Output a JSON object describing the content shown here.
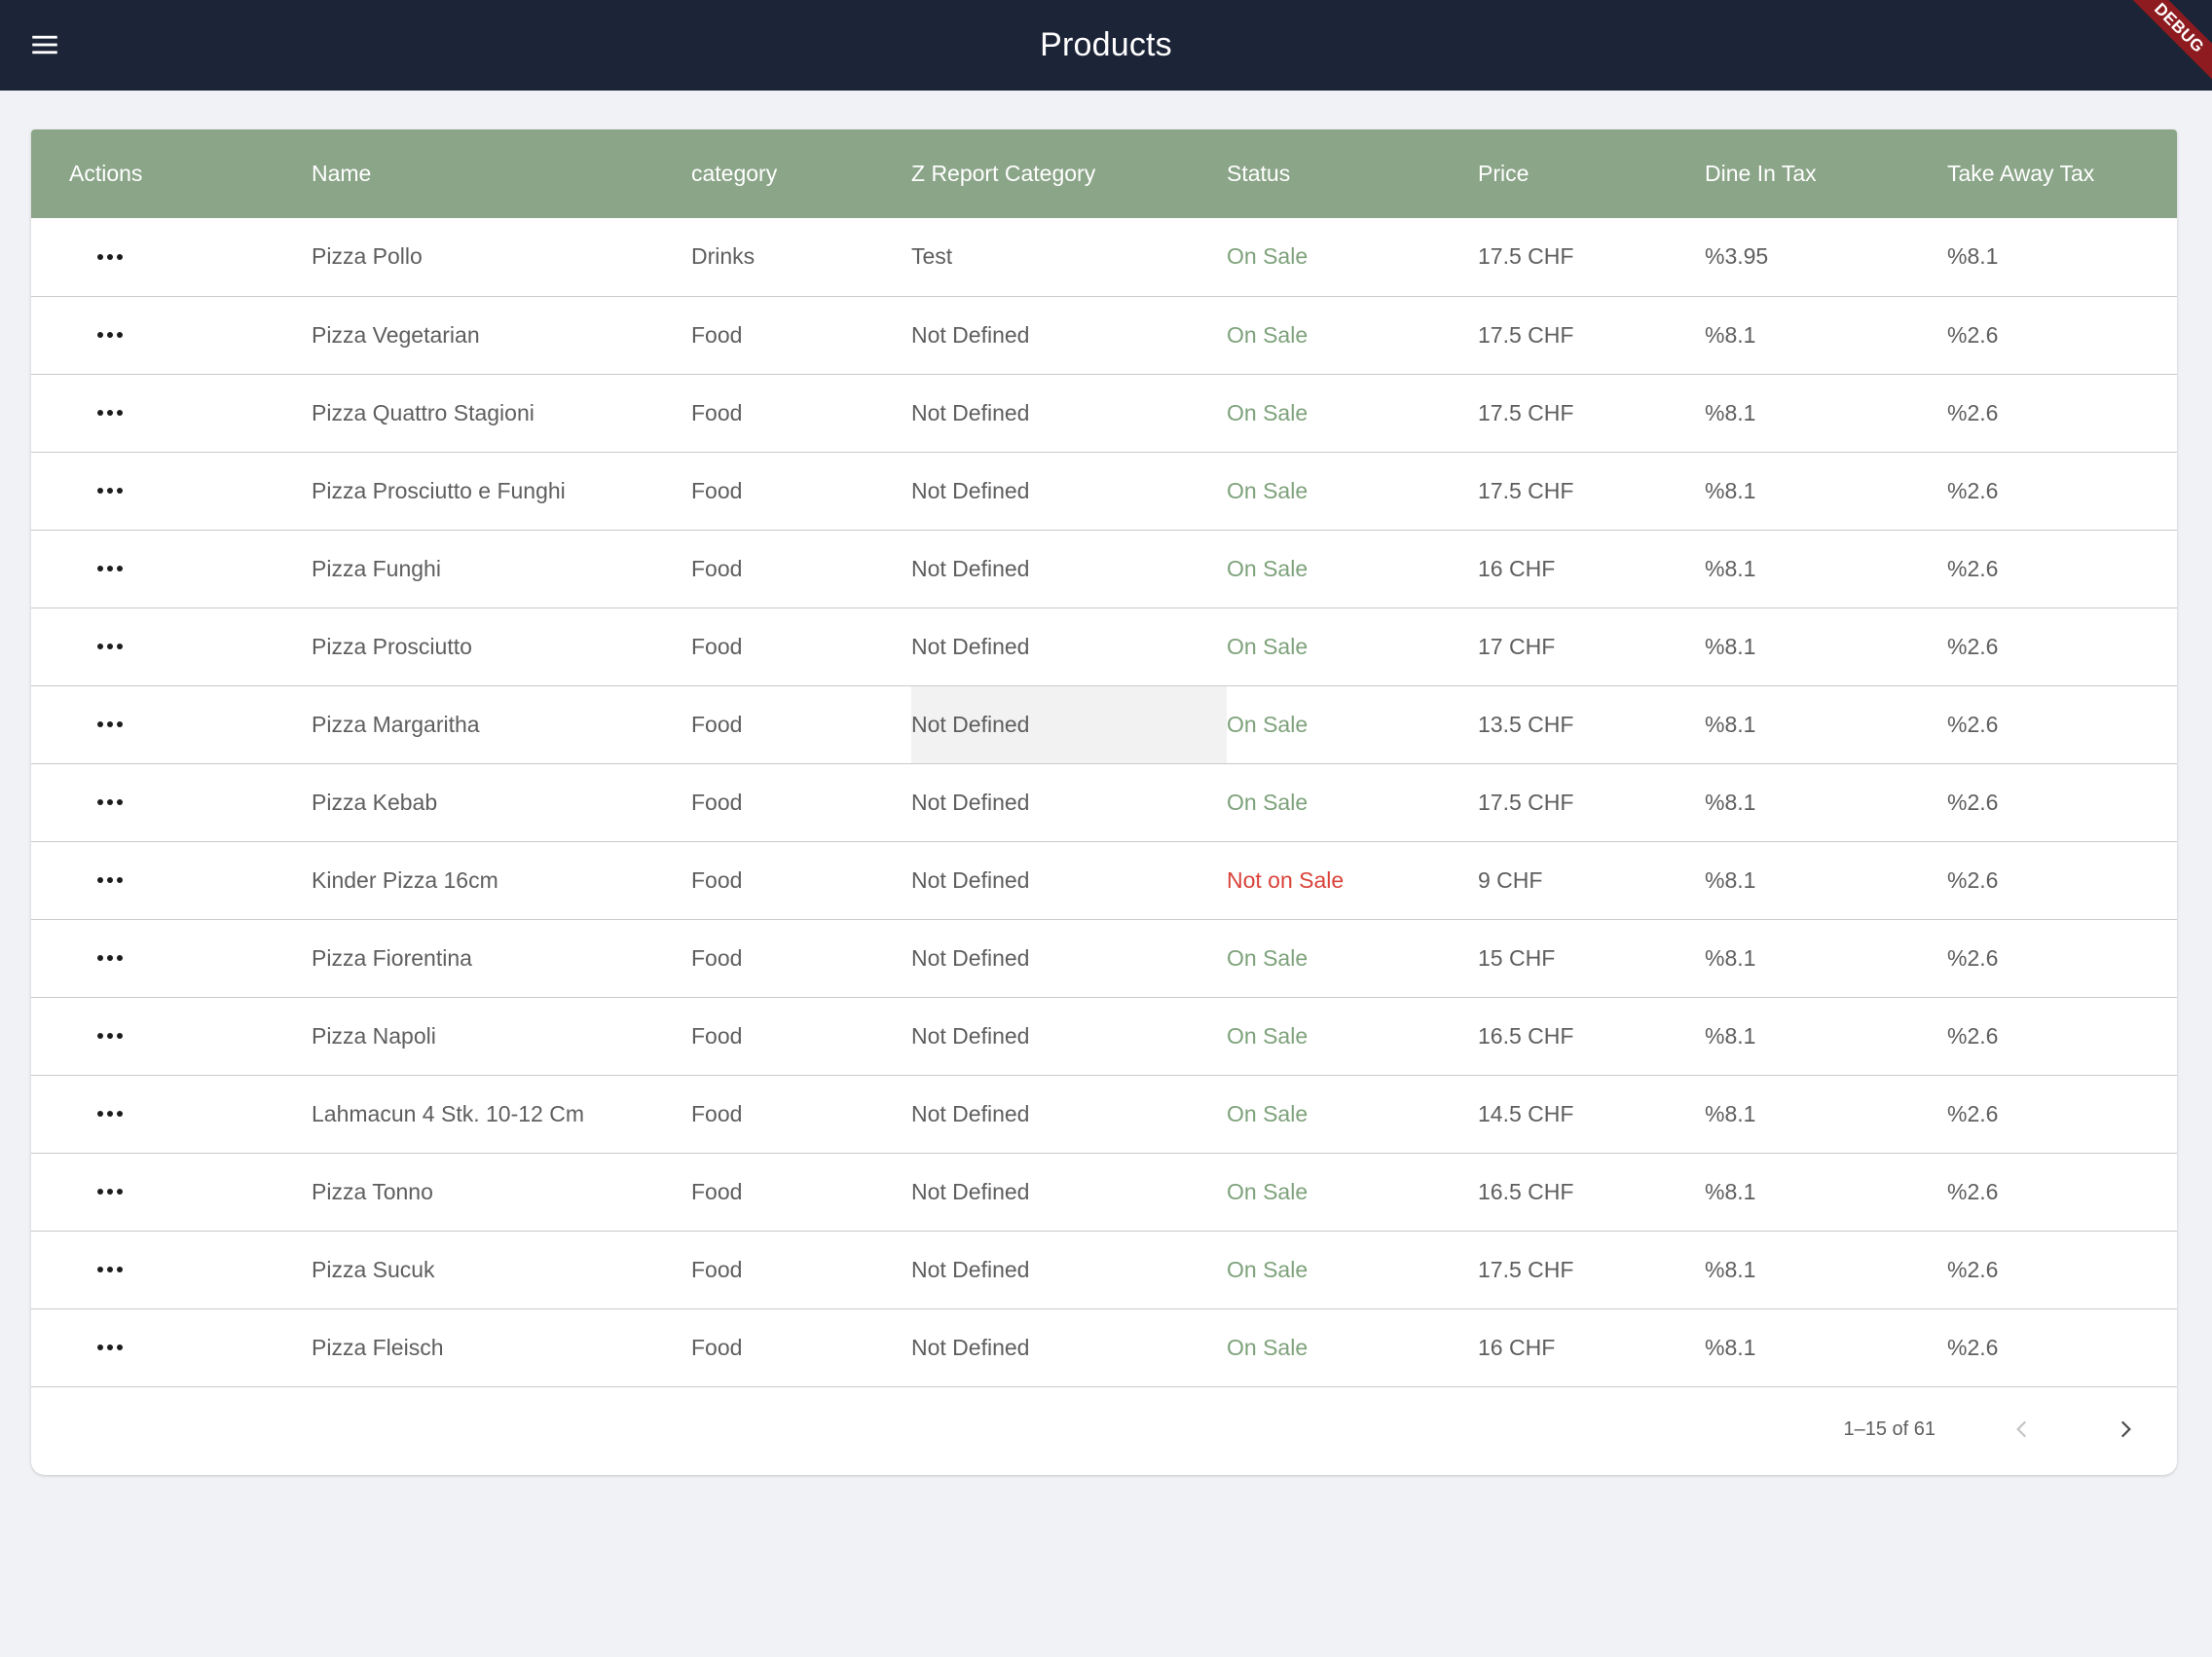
{
  "appbar": {
    "title": "Products",
    "menu_icon": "hamburger-menu-icon",
    "debug_label": "DEBUG",
    "background": "#1c2438"
  },
  "table": {
    "header_color": "#8ba588",
    "columns": [
      "Actions",
      "Name",
      "category",
      "Z Report Category",
      "Status",
      "Price",
      "Dine In Tax",
      "Take Away Tax"
    ],
    "rows": [
      {
        "name": "Pizza Pollo",
        "category": "Drinks",
        "z_report": "Test",
        "status": "On Sale",
        "price": "17.5 CHF",
        "dine_in_tax": "%3.95",
        "take_away_tax": "%8.1"
      },
      {
        "name": "Pizza Vegetarian",
        "category": "Food",
        "z_report": "Not Defined",
        "status": "On Sale",
        "price": "17.5 CHF",
        "dine_in_tax": "%8.1",
        "take_away_tax": "%2.6"
      },
      {
        "name": "Pizza Quattro Stagioni",
        "category": "Food",
        "z_report": "Not Defined",
        "status": "On Sale",
        "price": "17.5 CHF",
        "dine_in_tax": "%8.1",
        "take_away_tax": "%2.6"
      },
      {
        "name": "Pizza Prosciutto e Funghi",
        "category": "Food",
        "z_report": "Not Defined",
        "status": "On Sale",
        "price": "17.5 CHF",
        "dine_in_tax": "%8.1",
        "take_away_tax": "%2.6"
      },
      {
        "name": "Pizza Funghi",
        "category": "Food",
        "z_report": "Not Defined",
        "status": "On Sale",
        "price": "16 CHF",
        "dine_in_tax": "%8.1",
        "take_away_tax": "%2.6"
      },
      {
        "name": "Pizza Prosciutto",
        "category": "Food",
        "z_report": "Not Defined",
        "status": "On Sale",
        "price": "17 CHF",
        "dine_in_tax": "%8.1",
        "take_away_tax": "%2.6"
      },
      {
        "name": "Pizza Margaritha",
        "category": "Food",
        "z_report": "Not Defined",
        "status": "On Sale",
        "price": "13.5 CHF",
        "dine_in_tax": "%8.1",
        "take_away_tax": "%2.6"
      },
      {
        "name": "Pizza Kebab",
        "category": "Food",
        "z_report": "Not Defined",
        "status": "On Sale",
        "price": "17.5 CHF",
        "dine_in_tax": "%8.1",
        "take_away_tax": "%2.6"
      },
      {
        "name": "Kinder Pizza 16cm",
        "category": "Food",
        "z_report": "Not Defined",
        "status": "Not on Sale",
        "price": "9 CHF",
        "dine_in_tax": "%8.1",
        "take_away_tax": "%2.6"
      },
      {
        "name": "Pizza Fiorentina",
        "category": "Food",
        "z_report": "Not Defined",
        "status": "On Sale",
        "price": "15 CHF",
        "dine_in_tax": "%8.1",
        "take_away_tax": "%2.6"
      },
      {
        "name": "Pizza Napoli",
        "category": "Food",
        "z_report": "Not Defined",
        "status": "On Sale",
        "price": "16.5 CHF",
        "dine_in_tax": "%8.1",
        "take_away_tax": "%2.6"
      },
      {
        "name": "Lahmacun 4 Stk. 10-12 Cm",
        "category": "Food",
        "z_report": "Not Defined",
        "status": "On Sale",
        "price": "14.5 CHF",
        "dine_in_tax": "%8.1",
        "take_away_tax": "%2.6"
      },
      {
        "name": "Pizza Tonno",
        "category": "Food",
        "z_report": "Not Defined",
        "status": "On Sale",
        "price": "16.5 CHF",
        "dine_in_tax": "%8.1",
        "take_away_tax": "%2.6"
      },
      {
        "name": "Pizza Sucuk",
        "category": "Food",
        "z_report": "Not Defined",
        "status": "On Sale",
        "price": "17.5 CHF",
        "dine_in_tax": "%8.1",
        "take_away_tax": "%2.6"
      },
      {
        "name": "Pizza Fleisch",
        "category": "Food",
        "z_report": "Not Defined",
        "status": "On Sale",
        "price": "16 CHF",
        "dine_in_tax": "%8.1",
        "take_away_tax": "%2.6"
      }
    ],
    "hovered_row_index": 6,
    "status_colors": {
      "on_sale": "#7ea27b",
      "not_on_sale": "#d9433a"
    }
  },
  "pagination": {
    "range_text": "1–15 of 61",
    "prev_icon": "chevron-left-icon",
    "next_icon": "chevron-right-icon"
  }
}
